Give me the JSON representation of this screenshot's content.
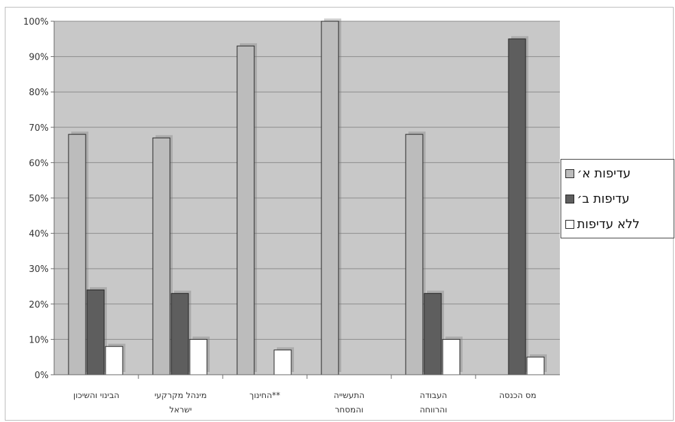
{
  "chart_data": {
    "type": "bar",
    "title": "",
    "xlabel": "",
    "ylabel": "",
    "ylim": [
      0,
      100
    ],
    "yticks": [
      "0%",
      "10%",
      "20%",
      "30%",
      "40%",
      "50%",
      "60%",
      "70%",
      "80%",
      "90%",
      "100%"
    ],
    "grid": true,
    "legend_position": "right",
    "categories": [
      [
        "הבינוי והשיכון"
      ],
      [
        "מינהל מקרקעי",
        "ישראל"
      ],
      [
        "**החינוך"
      ],
      [
        "התעשייה",
        "והמסחר"
      ],
      [
        "העבודה",
        "והרווחה"
      ],
      [
        "מס הכנסה"
      ]
    ],
    "series": [
      {
        "name": "עדיפות א׳",
        "color": "#bcbcbc",
        "values": [
          68,
          67,
          93,
          100,
          68,
          0
        ]
      },
      {
        "name": "עדיפות ב׳",
        "color": "#5e5e5e",
        "values": [
          24,
          23,
          0,
          0,
          23,
          95
        ]
      },
      {
        "name": "ללא עדיפות",
        "color": "#ffffff",
        "values": [
          8,
          10,
          7,
          0,
          10,
          5
        ]
      }
    ],
    "plot_background": "#c8c8c8"
  }
}
